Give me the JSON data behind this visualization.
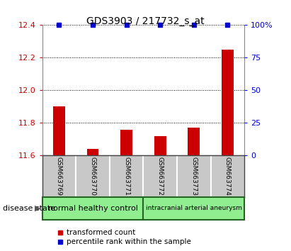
{
  "title": "GDS3903 / 217732_s_at",
  "samples": [
    "GSM663769",
    "GSM663770",
    "GSM663771",
    "GSM663772",
    "GSM663773",
    "GSM663774"
  ],
  "transformed_counts": [
    11.9,
    11.64,
    11.76,
    11.72,
    11.77,
    12.25
  ],
  "percentile_ranks": [
    100,
    100,
    100,
    100,
    100,
    100
  ],
  "ylim_left": [
    11.6,
    12.4
  ],
  "ylim_right": [
    0,
    100
  ],
  "yticks_left": [
    11.6,
    11.8,
    12.0,
    12.2,
    12.4
  ],
  "yticks_right": [
    0,
    25,
    50,
    75,
    100
  ],
  "groups": [
    {
      "label": "normal healthy control",
      "start": 0,
      "end": 3,
      "color": "#90ee90"
    },
    {
      "label": "intracranial arterial aneurysm",
      "start": 3,
      "end": 6,
      "color": "#90ee90"
    }
  ],
  "disease_state_label": "disease state",
  "bar_color": "#cc0000",
  "percentile_color": "#0000cc",
  "bar_width": 0.35,
  "grid_color": "black",
  "background_color": "#ffffff",
  "sample_box_color": "#c8c8c8",
  "legend_items": [
    {
      "label": "transformed count",
      "color": "#cc0000"
    },
    {
      "label": "percentile rank within the sample",
      "color": "#0000cc"
    }
  ]
}
